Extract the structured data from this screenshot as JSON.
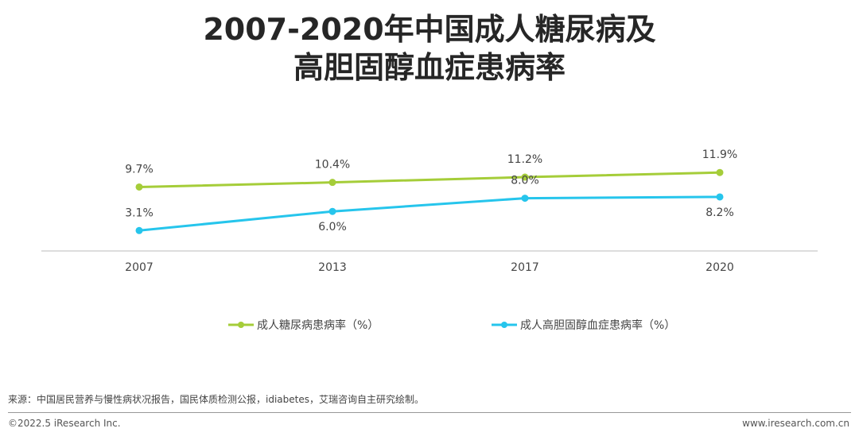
{
  "title_line1": "2007-2020年中国成人糖尿病及",
  "title_line2": "高胆固醇血症患病率",
  "chart_data": {
    "type": "line",
    "categories": [
      "2007",
      "2013",
      "2017",
      "2020"
    ],
    "series": [
      {
        "name": "成人糖尿病患病率（%）",
        "values": [
          9.7,
          10.4,
          11.2,
          11.9
        ],
        "labels": [
          "9.7%",
          "10.4%",
          "11.2%",
          "11.9%"
        ],
        "color": "#a5cd39"
      },
      {
        "name": "成人高胆固醇血症患病率（%）",
        "values": [
          3.1,
          6.0,
          8.0,
          8.2
        ],
        "labels": [
          "3.1%",
          "6.0%",
          "8.0%",
          "8.2%"
        ],
        "color": "#26c5ec"
      }
    ],
    "ylim": [
      0,
      14
    ],
    "grid": false,
    "legend_position": "bottom"
  },
  "footer": {
    "source": "来源：中国居民营养与慢性病状况报告，国民体质检测公报，idiabetes，艾瑞咨询自主研究绘制。",
    "copyright": "©2022.5 iResearch Inc.",
    "website": "www.iresearch.com.cn"
  }
}
